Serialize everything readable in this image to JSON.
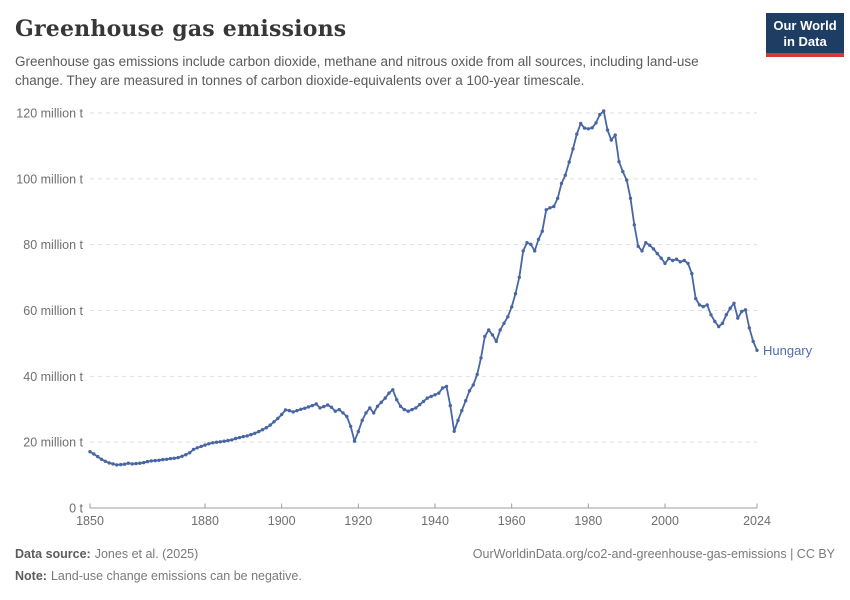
{
  "header": {
    "title": "Greenhouse gas emissions",
    "subtitle": "Greenhouse gas emissions include carbon dioxide, methane and nitrous oxide from all sources, including land-use change. They are measured in tonnes of carbon dioxide-equivalents over a 100-year timescale."
  },
  "logo": {
    "line1": "Our World",
    "line2": "in Data",
    "bg_color": "#1d3d63",
    "accent_color": "#d6392f"
  },
  "chart_data": {
    "type": "line",
    "title": "Greenhouse gas emissions",
    "xlabel": "",
    "ylabel": "",
    "xlim": [
      1850,
      2024
    ],
    "ylim": [
      0,
      120
    ],
    "grid": "horizontal-dashed",
    "legend_position": "end-of-line-label",
    "entity_label": "Hungary",
    "line_color": "#4866a4",
    "label_color": "#4e6fb0",
    "grid_color": "#dedede",
    "axis_color": "#9e9e9e",
    "tick_text_color": "#6f6f6f",
    "yticks": [
      {
        "value": 0,
        "label": "0 t"
      },
      {
        "value": 20,
        "label": "20 million t"
      },
      {
        "value": 40,
        "label": "40 million t"
      },
      {
        "value": 60,
        "label": "60 million t"
      },
      {
        "value": 80,
        "label": "80 million t"
      },
      {
        "value": 100,
        "label": "100 million t"
      },
      {
        "value": 120,
        "label": "120 million t"
      }
    ],
    "xticks": [
      {
        "value": 1850,
        "label": "1850"
      },
      {
        "value": 1880,
        "label": "1880"
      },
      {
        "value": 1900,
        "label": "1900"
      },
      {
        "value": 1920,
        "label": "1920"
      },
      {
        "value": 1940,
        "label": "1940"
      },
      {
        "value": 1960,
        "label": "1960"
      },
      {
        "value": 1980,
        "label": "1980"
      },
      {
        "value": 2000,
        "label": "2000"
      },
      {
        "value": 2024,
        "label": "2024"
      }
    ],
    "series": [
      {
        "name": "Hungary",
        "unit": "million t",
        "x": [
          1850,
          1851,
          1852,
          1853,
          1854,
          1855,
          1856,
          1857,
          1858,
          1859,
          1860,
          1861,
          1862,
          1863,
          1864,
          1865,
          1866,
          1867,
          1868,
          1869,
          1870,
          1871,
          1872,
          1873,
          1874,
          1875,
          1876,
          1877,
          1878,
          1879,
          1880,
          1881,
          1882,
          1883,
          1884,
          1885,
          1886,
          1887,
          1888,
          1889,
          1890,
          1891,
          1892,
          1893,
          1894,
          1895,
          1896,
          1897,
          1898,
          1899,
          1900,
          1901,
          1902,
          1903,
          1904,
          1905,
          1906,
          1907,
          1908,
          1909,
          1910,
          1911,
          1912,
          1913,
          1914,
          1915,
          1916,
          1917,
          1918,
          1919,
          1920,
          1921,
          1922,
          1923,
          1924,
          1925,
          1926,
          1927,
          1928,
          1929,
          1930,
          1931,
          1932,
          1933,
          1934,
          1935,
          1936,
          1937,
          1938,
          1939,
          1940,
          1941,
          1942,
          1943,
          1944,
          1945,
          1946,
          1947,
          1948,
          1949,
          1950,
          1951,
          1952,
          1953,
          1954,
          1955,
          1956,
          1957,
          1958,
          1959,
          1960,
          1961,
          1962,
          1963,
          1964,
          1965,
          1966,
          1967,
          1968,
          1969,
          1970,
          1971,
          1972,
          1973,
          1974,
          1975,
          1976,
          1977,
          1978,
          1979,
          1980,
          1981,
          1982,
          1983,
          1984,
          1985,
          1986,
          1987,
          1988,
          1989,
          1990,
          1991,
          1992,
          1993,
          1994,
          1995,
          1996,
          1997,
          1998,
          1999,
          2000,
          2001,
          2002,
          2003,
          2004,
          2005,
          2006,
          2007,
          2008,
          2009,
          2010,
          2011,
          2012,
          2013,
          2014,
          2015,
          2016,
          2017,
          2018,
          2019,
          2020,
          2021,
          2022,
          2023,
          2024
        ],
        "values": [
          17.1,
          16.4,
          15.6,
          14.8,
          14.2,
          13.7,
          13.4,
          13.1,
          13.2,
          13.3,
          13.6,
          13.4,
          13.5,
          13.6,
          13.8,
          14.1,
          14.3,
          14.4,
          14.5,
          14.7,
          14.8,
          15.0,
          15.1,
          15.3,
          15.7,
          16.2,
          16.8,
          17.8,
          18.3,
          18.7,
          19.1,
          19.5,
          19.8,
          20.0,
          20.1,
          20.3,
          20.5,
          20.7,
          21.1,
          21.4,
          21.7,
          21.9,
          22.3,
          22.7,
          23.2,
          23.8,
          24.4,
          25.2,
          26.2,
          27.2,
          28.4,
          29.8,
          29.6,
          29.2,
          29.6,
          30.0,
          30.3,
          30.7,
          31.1,
          31.6,
          30.4,
          30.8,
          31.3,
          30.6,
          29.4,
          29.9,
          28.9,
          27.8,
          24.8,
          20.3,
          23.2,
          26.6,
          28.9,
          30.4,
          28.9,
          30.9,
          32.1,
          33.4,
          34.9,
          35.9,
          32.9,
          30.9,
          29.9,
          29.4,
          29.9,
          30.4,
          31.4,
          32.4,
          33.4,
          33.9,
          34.4,
          34.9,
          36.5,
          36.9,
          31.1,
          23.3,
          26.6,
          29.6,
          32.6,
          35.6,
          37.4,
          40.6,
          45.6,
          52.1,
          54.1,
          52.6,
          50.6,
          54.1,
          56.1,
          58.1,
          61.1,
          65.1,
          70.1,
          78.1,
          80.6,
          80.1,
          78.1,
          81.6,
          84.1,
          90.6,
          91.2,
          91.6,
          94.1,
          98.6,
          101.1,
          105.1,
          109.1,
          113.6,
          116.8,
          115.4,
          115.2,
          115.5,
          117.0,
          119.5,
          120.6,
          114.8,
          111.8,
          113.3,
          105.2,
          102.2,
          99.6,
          94.1,
          86.0,
          79.5,
          78.1,
          80.6,
          79.8,
          78.7,
          77.3,
          75.9,
          74.3,
          75.8,
          75.2,
          75.6,
          74.8,
          75.2,
          74.3,
          71.2,
          63.6,
          61.7,
          61.2,
          61.7,
          58.7,
          56.7,
          55.1,
          56.1,
          58.7,
          60.7,
          62.2,
          57.7,
          59.7,
          60.2,
          54.7,
          50.6,
          47.9
        ]
      }
    ]
  },
  "footer": {
    "datasource_label": "Data source:",
    "datasource_value": "Jones et al. (2025)",
    "link": "OurWorldinData.org/co2-and-greenhouse-gas-emissions | CC BY",
    "note_label": "Note:",
    "note_value": "Land-use change emissions can be negative."
  }
}
